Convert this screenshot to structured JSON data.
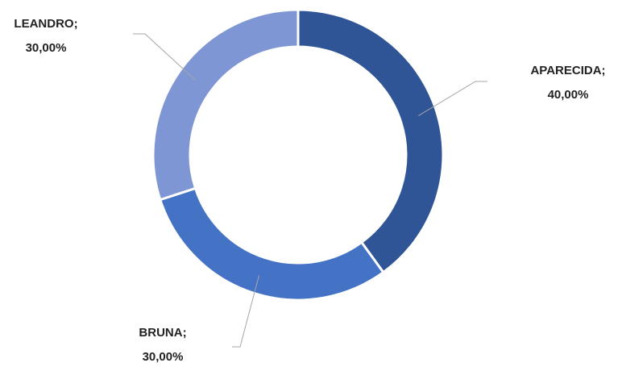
{
  "chart_data": {
    "type": "donut",
    "categories": [
      "APARECIDA",
      "BRUNA",
      "LEANDRO"
    ],
    "values": [
      40,
      30,
      30
    ],
    "value_labels": [
      "40,00%",
      "30,00%",
      "30,00%"
    ],
    "label_separator": ";",
    "colors": [
      "#2f5597",
      "#4472c4",
      "#7f96d4"
    ]
  }
}
